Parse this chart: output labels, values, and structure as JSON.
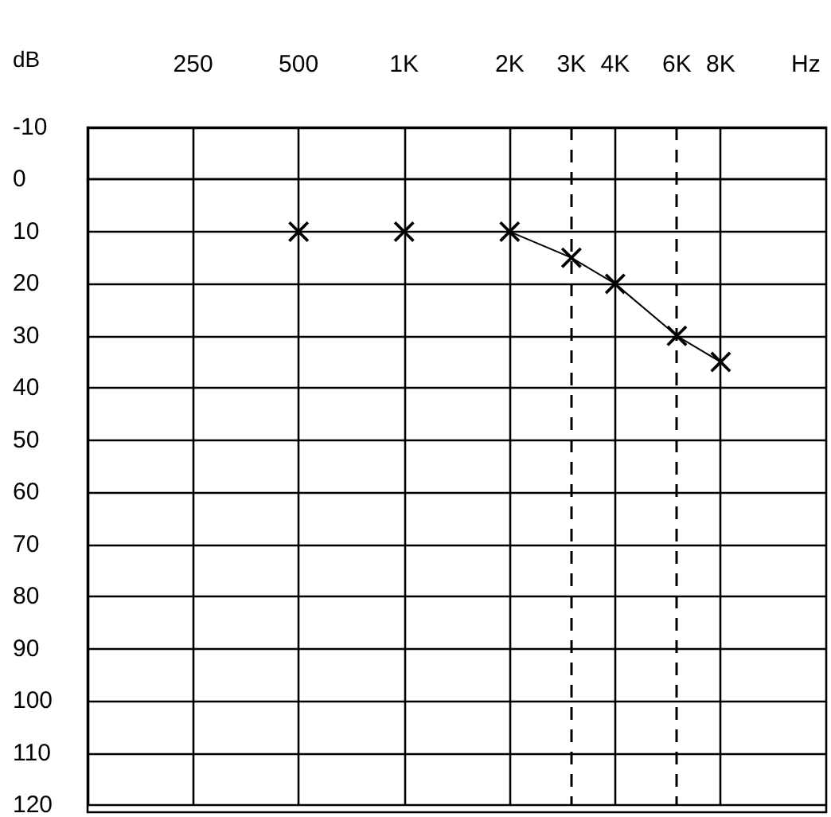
{
  "chart_data": {
    "type": "line",
    "xlabel": "Hz",
    "ylabel": "dB",
    "log": "x",
    "xlim": [
      125,
      16000
    ],
    "xticks": [
      {
        "value": 250,
        "label": "250"
      },
      {
        "value": 500,
        "label": "500"
      },
      {
        "value": 1000,
        "label": "1K"
      },
      {
        "value": 2000,
        "label": "2K"
      },
      {
        "value": 3000,
        "label": "3K"
      },
      {
        "value": 4000,
        "label": "4K"
      },
      {
        "value": 6000,
        "label": "6K"
      },
      {
        "value": 8000,
        "label": "8K"
      }
    ],
    "ylim": [
      120,
      -10
    ],
    "yticks": [
      -10,
      0,
      10,
      20,
      30,
      40,
      50,
      60,
      70,
      80,
      90,
      100,
      110,
      120
    ],
    "x": [
      500,
      1000,
      2000,
      3000,
      4000,
      6000,
      8000
    ],
    "series": [
      {
        "color": "#000000",
        "values": [
          10,
          10,
          10,
          15,
          20,
          30,
          35
        ]
      }
    ],
    "ref_lines": [
      {
        "axis": "x",
        "value": 250,
        "line_style": "solid"
      },
      {
        "axis": "x",
        "value": 500,
        "line_style": "solid"
      },
      {
        "axis": "x",
        "value": 1000,
        "line_style": "solid"
      },
      {
        "axis": "x",
        "value": 2000,
        "line_style": "solid"
      },
      {
        "axis": "x",
        "value": 3000,
        "line_style": "dashed"
      },
      {
        "axis": "x",
        "value": 4000,
        "line_style": "solid"
      },
      {
        "axis": "x",
        "value": 6000,
        "line_style": "dashed"
      },
      {
        "axis": "x",
        "value": 8000,
        "line_style": "solid"
      }
    ],
    "grid": "y",
    "marker": "cross",
    "line_style": "solid"
  }
}
